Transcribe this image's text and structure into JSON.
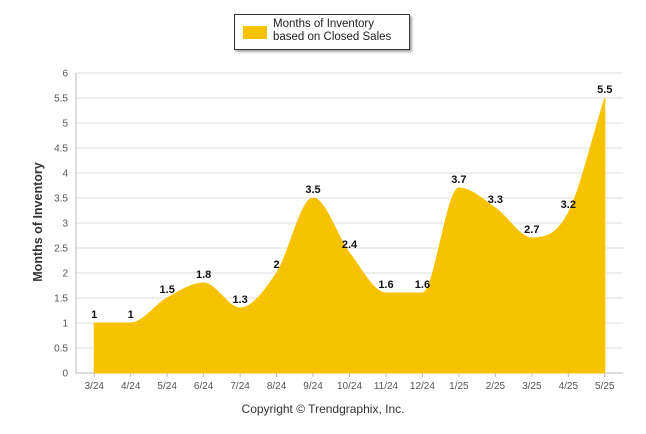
{
  "colors": {
    "series": "#F7C200",
    "grid": "#dddddd",
    "axis": "#bbbbbb"
  },
  "footer": "Copyright © Trendgraphix, Inc.",
  "chart_data": {
    "type": "area",
    "ylabel": "Months of Inventory",
    "xlabel": "",
    "ylim": [
      0,
      6
    ],
    "yticks": [
      0,
      0.5,
      1,
      1.5,
      2,
      2.5,
      3,
      3.5,
      4,
      4.5,
      5,
      5.5,
      6
    ],
    "ytick_labels": [
      "0",
      "0.5",
      "1",
      "1.5",
      "2",
      "2.5",
      "3",
      "3.5",
      "4",
      "4.5",
      "5",
      "5.5",
      "6"
    ],
    "grid": true,
    "legend_position": "top-center",
    "categories": [
      "3/24",
      "4/24",
      "5/24",
      "6/24",
      "7/24",
      "8/24",
      "9/24",
      "10/24",
      "11/24",
      "12/24",
      "1/25",
      "2/25",
      "3/25",
      "4/25",
      "5/25"
    ],
    "series": [
      {
        "name": "Months of Inventory based on Closed Sales",
        "values": [
          1,
          1,
          1.5,
          1.8,
          1.3,
          2,
          3.5,
          2.4,
          1.6,
          1.6,
          3.7,
          3.3,
          2.7,
          3.2,
          5.5
        ],
        "labels": [
          "1",
          "1",
          "1.5",
          "1.8",
          "1.3",
          "2",
          "3.5",
          "2.4",
          "1.6",
          "1.6",
          "3.7",
          "3.3",
          "2.7",
          "3.2",
          "5.5"
        ]
      }
    ]
  }
}
